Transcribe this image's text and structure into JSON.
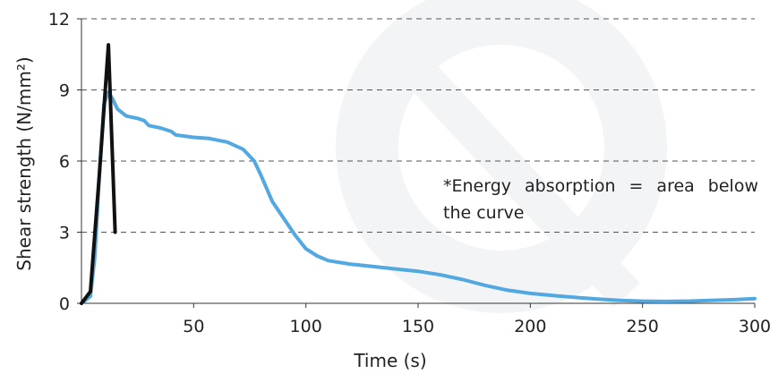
{
  "colors": {
    "series_blue": "#52a8e0",
    "series_black": "#111111",
    "grid": "#555555",
    "axis": "#333333",
    "watermark": "#f3f4f5"
  },
  "annotation": "*Energy absorption = area below the curve",
  "chart_data": {
    "type": "line",
    "title": "",
    "xlabel": "Time (s)",
    "ylabel": "Shear strength (N/mm²)",
    "xlim": [
      0,
      300
    ],
    "ylim": [
      0,
      12
    ],
    "x_ticks": [
      50,
      100,
      150,
      200,
      250,
      300
    ],
    "y_ticks": [
      0,
      3,
      6,
      9,
      12
    ],
    "grid": "horizontal dashed",
    "legend": "none",
    "series": [
      {
        "color": "#52a8e0",
        "points": [
          [
            0,
            0
          ],
          [
            4,
            0.3
          ],
          [
            6,
            2.0
          ],
          [
            8,
            5.5
          ],
          [
            10,
            8.4
          ],
          [
            12,
            8.9
          ],
          [
            14,
            8.6
          ],
          [
            16,
            8.2
          ],
          [
            20,
            7.9
          ],
          [
            25,
            7.8
          ],
          [
            28,
            7.7
          ],
          [
            30,
            7.5
          ],
          [
            35,
            7.4
          ],
          [
            40,
            7.25
          ],
          [
            42,
            7.1
          ],
          [
            50,
            7.0
          ],
          [
            57,
            6.95
          ],
          [
            65,
            6.8
          ],
          [
            72,
            6.5
          ],
          [
            77,
            6.0
          ],
          [
            80,
            5.4
          ],
          [
            85,
            4.3
          ],
          [
            90,
            3.6
          ],
          [
            95,
            2.9
          ],
          [
            100,
            2.3
          ],
          [
            105,
            2.0
          ],
          [
            110,
            1.8
          ],
          [
            120,
            1.65
          ],
          [
            130,
            1.55
          ],
          [
            140,
            1.45
          ],
          [
            150,
            1.35
          ],
          [
            160,
            1.2
          ],
          [
            170,
            1.0
          ],
          [
            180,
            0.75
          ],
          [
            190,
            0.55
          ],
          [
            200,
            0.42
          ],
          [
            210,
            0.33
          ],
          [
            220,
            0.25
          ],
          [
            230,
            0.18
          ],
          [
            240,
            0.12
          ],
          [
            250,
            0.09
          ],
          [
            260,
            0.08
          ],
          [
            270,
            0.09
          ],
          [
            280,
            0.12
          ],
          [
            290,
            0.15
          ],
          [
            300,
            0.2
          ]
        ]
      },
      {
        "color": "#111111",
        "points": [
          [
            0,
            0
          ],
          [
            4,
            0.5
          ],
          [
            8,
            5.5
          ],
          [
            12,
            10.9
          ],
          [
            15,
            3.0
          ]
        ]
      }
    ]
  }
}
